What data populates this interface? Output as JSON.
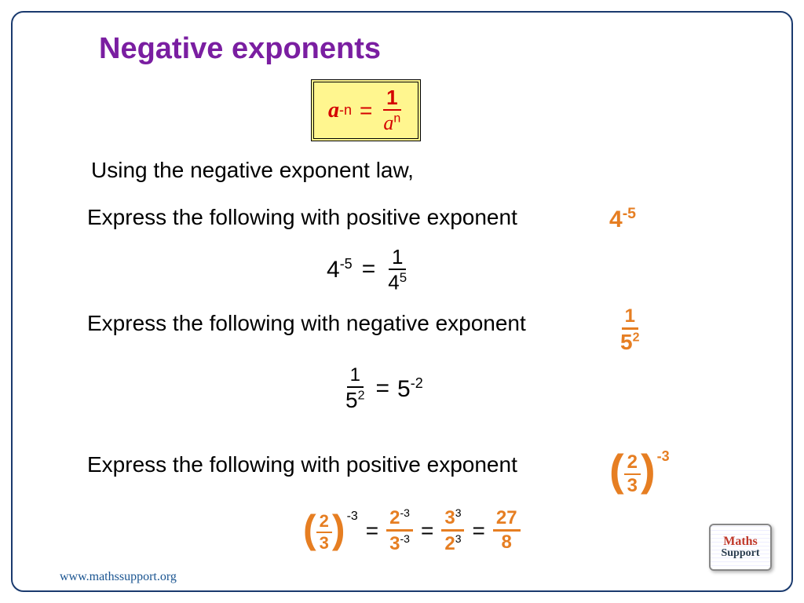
{
  "title": "Negative exponents",
  "colors": {
    "title": "#7a1ea1",
    "formula": "#d40000",
    "formula_bg": "#fff68f",
    "highlight": "#e67e22",
    "text": "#000000",
    "frame": "#1a3a6e",
    "url": "#1a5490"
  },
  "formula": {
    "base": "a",
    "lhs_exp": "-n",
    "eq": "=",
    "num": "1",
    "den_base": "a",
    "den_exp": "n"
  },
  "intro": "Using the negative exponent law,",
  "ex1": {
    "prompt": "Express the following with positive exponent",
    "problem_base": "4",
    "problem_exp": "-5",
    "work_lhs_base": "4",
    "work_lhs_exp": "-5",
    "eq": "=",
    "work_num": "1",
    "work_den_base": "4",
    "work_den_exp": "5"
  },
  "ex2": {
    "prompt": "Express the following with negative exponent",
    "problem_num": "1",
    "problem_den_base": "5",
    "problem_den_exp": "2",
    "work_num": "1",
    "work_den_base": "5",
    "work_den_exp": "2",
    "eq": "=",
    "rhs_base": "5",
    "rhs_exp": "-2"
  },
  "ex3": {
    "prompt": "Express the following with positive exponent",
    "problem_num": "2",
    "problem_den": "3",
    "problem_exp": "-3",
    "step1_num_base": "2",
    "step1_num_exp": "-3",
    "step1_den_base": "3",
    "step1_den_exp": "-3",
    "step2_num_base": "3",
    "step2_num_exp": "3",
    "step2_den_base": "2",
    "step2_den_exp": "3",
    "result_num": "27",
    "result_den": "8",
    "eq": "="
  },
  "url": "www.mathssupport.org",
  "logo": {
    "line1": "Maths",
    "line2": "Support"
  }
}
